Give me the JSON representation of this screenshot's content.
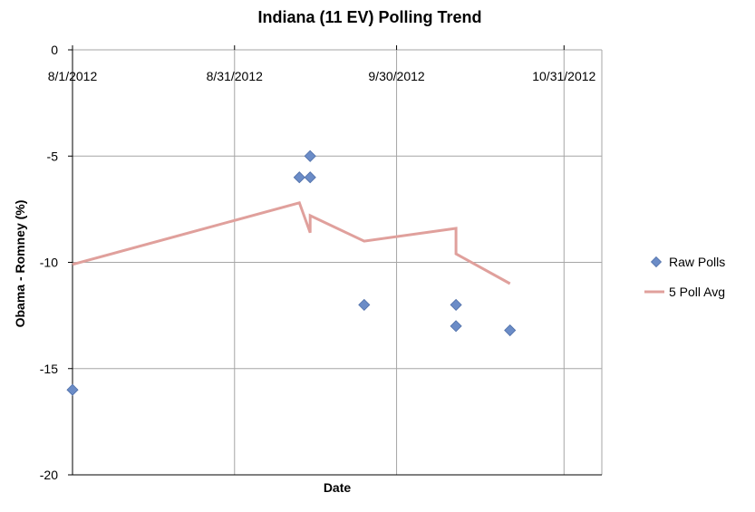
{
  "chart_data": {
    "type": "scatter",
    "title": "Indiana (11 EV) Polling Trend",
    "xlabel": "Date",
    "ylabel": "Obama - Romney (%)",
    "x_ticks": [
      "8/1/2012",
      "8/31/2012",
      "9/30/2012",
      "10/31/2012"
    ],
    "x_tick_values": [
      "2012-08-01",
      "2012-08-31",
      "2012-09-30",
      "2012-10-31"
    ],
    "xlim": [
      "2012-08-01",
      "2012-11-07"
    ],
    "ylim": [
      -20,
      0
    ],
    "y_ticks": [
      0,
      -5,
      -10,
      -15,
      -20
    ],
    "grid": true,
    "legend_position": "right",
    "series": [
      {
        "name": "Raw Polls",
        "kind": "markers",
        "marker": "diamond",
        "color": "#6b8cc7",
        "points": [
          {
            "x": "2012-08-01",
            "y": -16
          },
          {
            "x": "2012-09-12",
            "y": -6
          },
          {
            "x": "2012-09-14",
            "y": -5
          },
          {
            "x": "2012-09-14",
            "y": -6
          },
          {
            "x": "2012-09-24",
            "y": -12
          },
          {
            "x": "2012-10-11",
            "y": -12
          },
          {
            "x": "2012-10-11",
            "y": -13
          },
          {
            "x": "2012-10-21",
            "y": -13.2
          }
        ]
      },
      {
        "name": "5 Poll Avg",
        "kind": "line",
        "color": "#e0a09c",
        "points": [
          {
            "x": "2012-08-01",
            "y": -10.1
          },
          {
            "x": "2012-09-12",
            "y": -7.2
          },
          {
            "x": "2012-09-14",
            "y": -8.6
          },
          {
            "x": "2012-09-14",
            "y": -7.8
          },
          {
            "x": "2012-09-24",
            "y": -9.0
          },
          {
            "x": "2012-10-11",
            "y": -8.4
          },
          {
            "x": "2012-10-11",
            "y": -9.6
          },
          {
            "x": "2012-10-21",
            "y": -11.0
          }
        ]
      }
    ]
  }
}
